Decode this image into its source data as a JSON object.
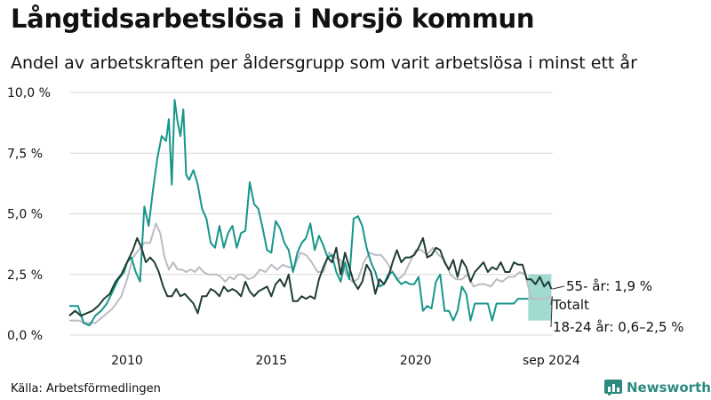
{
  "title": "Långtidsarbetslösa i Norsjö kommun",
  "subtitle": "Andel av arbetskraften per åldersgrupp som varit arbetslösa i minst ett år",
  "source": "Källa: Arbetsförmedlingen",
  "brand": "Newsworthy",
  "colors": {
    "youth": "#16968a",
    "senior": "#1f3d33",
    "total": "#bdbbc4",
    "band": "#8fd3c8",
    "grid": "#d9d9d9"
  },
  "chart_data": {
    "type": "line",
    "ylim": [
      0,
      10
    ],
    "xlim": [
      2008,
      2024.75
    ],
    "y_ticks": [
      {
        "value": 0,
        "label": "0,0 %"
      },
      {
        "value": 2.5,
        "label": "2,5 %"
      },
      {
        "value": 5,
        "label": "5,0 %"
      },
      {
        "value": 7.5,
        "label": "7,5 %"
      },
      {
        "value": 10,
        "label": "10,0 %"
      }
    ],
    "x_ticks": [
      {
        "value": 2010,
        "label": "2010"
      },
      {
        "value": 2015,
        "label": "2015"
      },
      {
        "value": 2020,
        "label": "2020"
      },
      {
        "value": 2024.7,
        "label": "sep 2024"
      }
    ],
    "annotations": [
      {
        "text": "55- år: 1,9 %",
        "series": "senior"
      },
      {
        "text": "Totalt",
        "series": "total"
      },
      {
        "text": "18-24 år: 0,6–2,5 %",
        "series": "youth"
      }
    ],
    "youth_range_last": {
      "low": 0.6,
      "high": 2.5,
      "x_start": 2023.9,
      "x_end": 2024.7
    },
    "series": [
      {
        "key": "youth",
        "x": [
          2008.0,
          2008.3,
          2008.5,
          2008.7,
          2008.9,
          2009.1,
          2009.3,
          2009.5,
          2009.7,
          2009.9,
          2010.0,
          2010.15,
          2010.3,
          2010.45,
          2010.6,
          2010.75,
          2010.9,
          2011.05,
          2011.2,
          2011.35,
          2011.45,
          2011.55,
          2011.65,
          2011.75,
          2011.85,
          2011.95,
          2012.05,
          2012.15,
          2012.3,
          2012.45,
          2012.6,
          2012.75,
          2012.9,
          2013.05,
          2013.2,
          2013.35,
          2013.5,
          2013.65,
          2013.8,
          2013.95,
          2014.1,
          2014.25,
          2014.4,
          2014.55,
          2014.7,
          2014.85,
          2015.0,
          2015.15,
          2015.3,
          2015.45,
          2015.6,
          2015.75,
          2015.9,
          2016.05,
          2016.2,
          2016.35,
          2016.5,
          2016.65,
          2016.8,
          2016.95,
          2017.1,
          2017.25,
          2017.4,
          2017.55,
          2017.7,
          2017.85,
          2018.0,
          2018.15,
          2018.3,
          2018.45,
          2018.6,
          2018.75,
          2018.9,
          2019.05,
          2019.2,
          2019.35,
          2019.5,
          2019.65,
          2019.8,
          2019.95,
          2020.1,
          2020.25,
          2020.4,
          2020.55,
          2020.7,
          2020.85,
          2021.0,
          2021.15,
          2021.3,
          2021.45,
          2021.6,
          2021.75,
          2021.9,
          2022.05,
          2022.2,
          2022.35,
          2022.5,
          2022.65,
          2022.8,
          2022.95,
          2023.1,
          2023.25,
          2023.4,
          2023.55,
          2023.7,
          2023.9
        ],
        "values": [
          1.2,
          1.2,
          0.5,
          0.4,
          0.8,
          1.0,
          1.3,
          1.8,
          2.3,
          2.6,
          3.0,
          3.2,
          2.6,
          2.2,
          5.3,
          4.5,
          6.0,
          7.3,
          8.2,
          8.0,
          8.9,
          6.2,
          9.7,
          8.8,
          8.2,
          9.3,
          6.6,
          6.4,
          6.8,
          6.2,
          5.2,
          4.8,
          3.8,
          3.6,
          4.5,
          3.6,
          4.2,
          4.5,
          3.6,
          4.2,
          4.3,
          6.3,
          5.4,
          5.2,
          4.4,
          3.5,
          3.4,
          4.7,
          4.4,
          3.8,
          3.5,
          2.6,
          3.4,
          3.8,
          4.0,
          4.6,
          3.5,
          4.1,
          3.7,
          3.2,
          3.3,
          2.6,
          2.2,
          3.0,
          2.3,
          4.8,
          4.9,
          4.5,
          3.6,
          3.0,
          2.6,
          2.0,
          2.1,
          2.5,
          2.6,
          2.3,
          2.1,
          2.2,
          2.1,
          2.1,
          2.4,
          1.0,
          1.2,
          1.1,
          2.2,
          2.5,
          1.0,
          1.0,
          0.6,
          1.0,
          2.0,
          1.7,
          0.6,
          1.3,
          1.3,
          1.3,
          1.3,
          0.6,
          1.3,
          1.3,
          1.3,
          1.3,
          1.3,
          1.5,
          1.5,
          1.5
        ]
      },
      {
        "key": "senior",
        "x": [
          2008.0,
          2008.2,
          2008.4,
          2008.6,
          2008.8,
          2009.0,
          2009.2,
          2009.4,
          2009.6,
          2009.8,
          2010.0,
          2010.2,
          2010.35,
          2010.5,
          2010.65,
          2010.8,
          2010.95,
          2011.1,
          2011.25,
          2011.4,
          2011.55,
          2011.7,
          2011.85,
          2012.0,
          2012.15,
          2012.3,
          2012.45,
          2012.6,
          2012.75,
          2012.9,
          2013.05,
          2013.2,
          2013.35,
          2013.5,
          2013.65,
          2013.8,
          2013.95,
          2014.1,
          2014.25,
          2014.4,
          2014.55,
          2014.7,
          2014.85,
          2015.0,
          2015.15,
          2015.3,
          2015.45,
          2015.6,
          2015.75,
          2015.9,
          2016.05,
          2016.2,
          2016.35,
          2016.5,
          2016.65,
          2016.8,
          2016.95,
          2017.1,
          2017.25,
          2017.4,
          2017.55,
          2017.7,
          2017.85,
          2018.0,
          2018.15,
          2018.3,
          2018.45,
          2018.6,
          2018.75,
          2018.9,
          2019.05,
          2019.2,
          2019.35,
          2019.5,
          2019.65,
          2019.8,
          2019.95,
          2020.1,
          2020.25,
          2020.4,
          2020.55,
          2020.7,
          2020.85,
          2021.0,
          2021.15,
          2021.3,
          2021.45,
          2021.6,
          2021.75,
          2021.9,
          2022.05,
          2022.2,
          2022.35,
          2022.5,
          2022.65,
          2022.8,
          2022.95,
          2023.1,
          2023.25,
          2023.4,
          2023.55,
          2023.7,
          2023.85,
          2024.0,
          2024.15,
          2024.3,
          2024.45,
          2024.6,
          2024.7
        ],
        "values": [
          0.8,
          1.0,
          0.8,
          0.9,
          1.0,
          1.2,
          1.5,
          1.7,
          2.2,
          2.5,
          3.0,
          3.5,
          4.0,
          3.6,
          3.0,
          3.2,
          3.0,
          2.6,
          2.0,
          1.6,
          1.6,
          1.9,
          1.6,
          1.7,
          1.5,
          1.3,
          0.9,
          1.6,
          1.6,
          1.9,
          1.8,
          1.6,
          2.0,
          1.8,
          1.9,
          1.8,
          1.6,
          2.2,
          1.8,
          1.6,
          1.8,
          1.9,
          2.0,
          1.6,
          2.1,
          2.3,
          2.0,
          2.5,
          1.4,
          1.4,
          1.6,
          1.5,
          1.6,
          1.5,
          2.3,
          2.8,
          3.2,
          3.0,
          3.6,
          2.5,
          3.4,
          2.8,
          2.2,
          1.9,
          2.2,
          2.9,
          2.6,
          1.7,
          2.3,
          2.1,
          2.4,
          3.0,
          3.5,
          3.0,
          3.2,
          3.2,
          3.3,
          3.6,
          4.0,
          3.2,
          3.3,
          3.6,
          3.5,
          3.0,
          2.7,
          3.1,
          2.4,
          3.1,
          2.8,
          2.2,
          2.6,
          2.8,
          3.0,
          2.6,
          2.8,
          2.7,
          3.0,
          2.6,
          2.6,
          3.0,
          2.9,
          2.9,
          2.3,
          2.3,
          2.1,
          2.4,
          2.0,
          2.2,
          1.9
        ]
      },
      {
        "key": "total",
        "x": [
          2008.0,
          2008.3,
          2008.6,
          2008.9,
          2009.2,
          2009.5,
          2009.8,
          2010.0,
          2010.2,
          2010.4,
          2010.6,
          2010.8,
          2011.0,
          2011.15,
          2011.3,
          2011.45,
          2011.6,
          2011.75,
          2011.9,
          2012.05,
          2012.2,
          2012.35,
          2012.5,
          2012.65,
          2012.8,
          2012.95,
          2013.1,
          2013.25,
          2013.4,
          2013.55,
          2013.7,
          2013.85,
          2014.0,
          2014.2,
          2014.4,
          2014.6,
          2014.8,
          2015.0,
          2015.2,
          2015.4,
          2015.6,
          2015.8,
          2016.0,
          2016.2,
          2016.4,
          2016.6,
          2016.8,
          2017.0,
          2017.2,
          2017.4,
          2017.6,
          2017.8,
          2018.0,
          2018.2,
          2018.4,
          2018.6,
          2018.8,
          2019.0,
          2019.2,
          2019.4,
          2019.6,
          2019.8,
          2020.0,
          2020.2,
          2020.4,
          2020.6,
          2020.8,
          2021.0,
          2021.2,
          2021.4,
          2021.6,
          2021.8,
          2022.0,
          2022.2,
          2022.4,
          2022.6,
          2022.8,
          2023.0,
          2023.2,
          2023.4,
          2023.6,
          2023.8,
          2024.0,
          2024.2,
          2024.4,
          2024.7
        ],
        "values": [
          0.6,
          0.6,
          0.5,
          0.5,
          0.8,
          1.1,
          1.6,
          2.3,
          3.2,
          3.5,
          3.8,
          3.8,
          4.6,
          4.2,
          3.2,
          2.7,
          3.0,
          2.7,
          2.7,
          2.6,
          2.7,
          2.6,
          2.8,
          2.6,
          2.5,
          2.5,
          2.5,
          2.4,
          2.2,
          2.4,
          2.3,
          2.5,
          2.5,
          2.3,
          2.4,
          2.7,
          2.6,
          2.9,
          2.7,
          2.9,
          2.8,
          2.8,
          3.4,
          3.3,
          3.0,
          2.6,
          2.6,
          3.4,
          3.2,
          3.1,
          2.5,
          2.2,
          2.3,
          3.0,
          3.4,
          3.3,
          3.3,
          3.0,
          2.6,
          2.3,
          2.5,
          3.0,
          3.5,
          3.5,
          3.3,
          3.6,
          3.3,
          3.1,
          2.5,
          2.3,
          2.3,
          2.5,
          2.0,
          2.1,
          2.1,
          2.0,
          2.3,
          2.2,
          2.4,
          2.4,
          2.6,
          2.5,
          1.5,
          1.5,
          1.5,
          1.6
        ]
      }
    ]
  }
}
